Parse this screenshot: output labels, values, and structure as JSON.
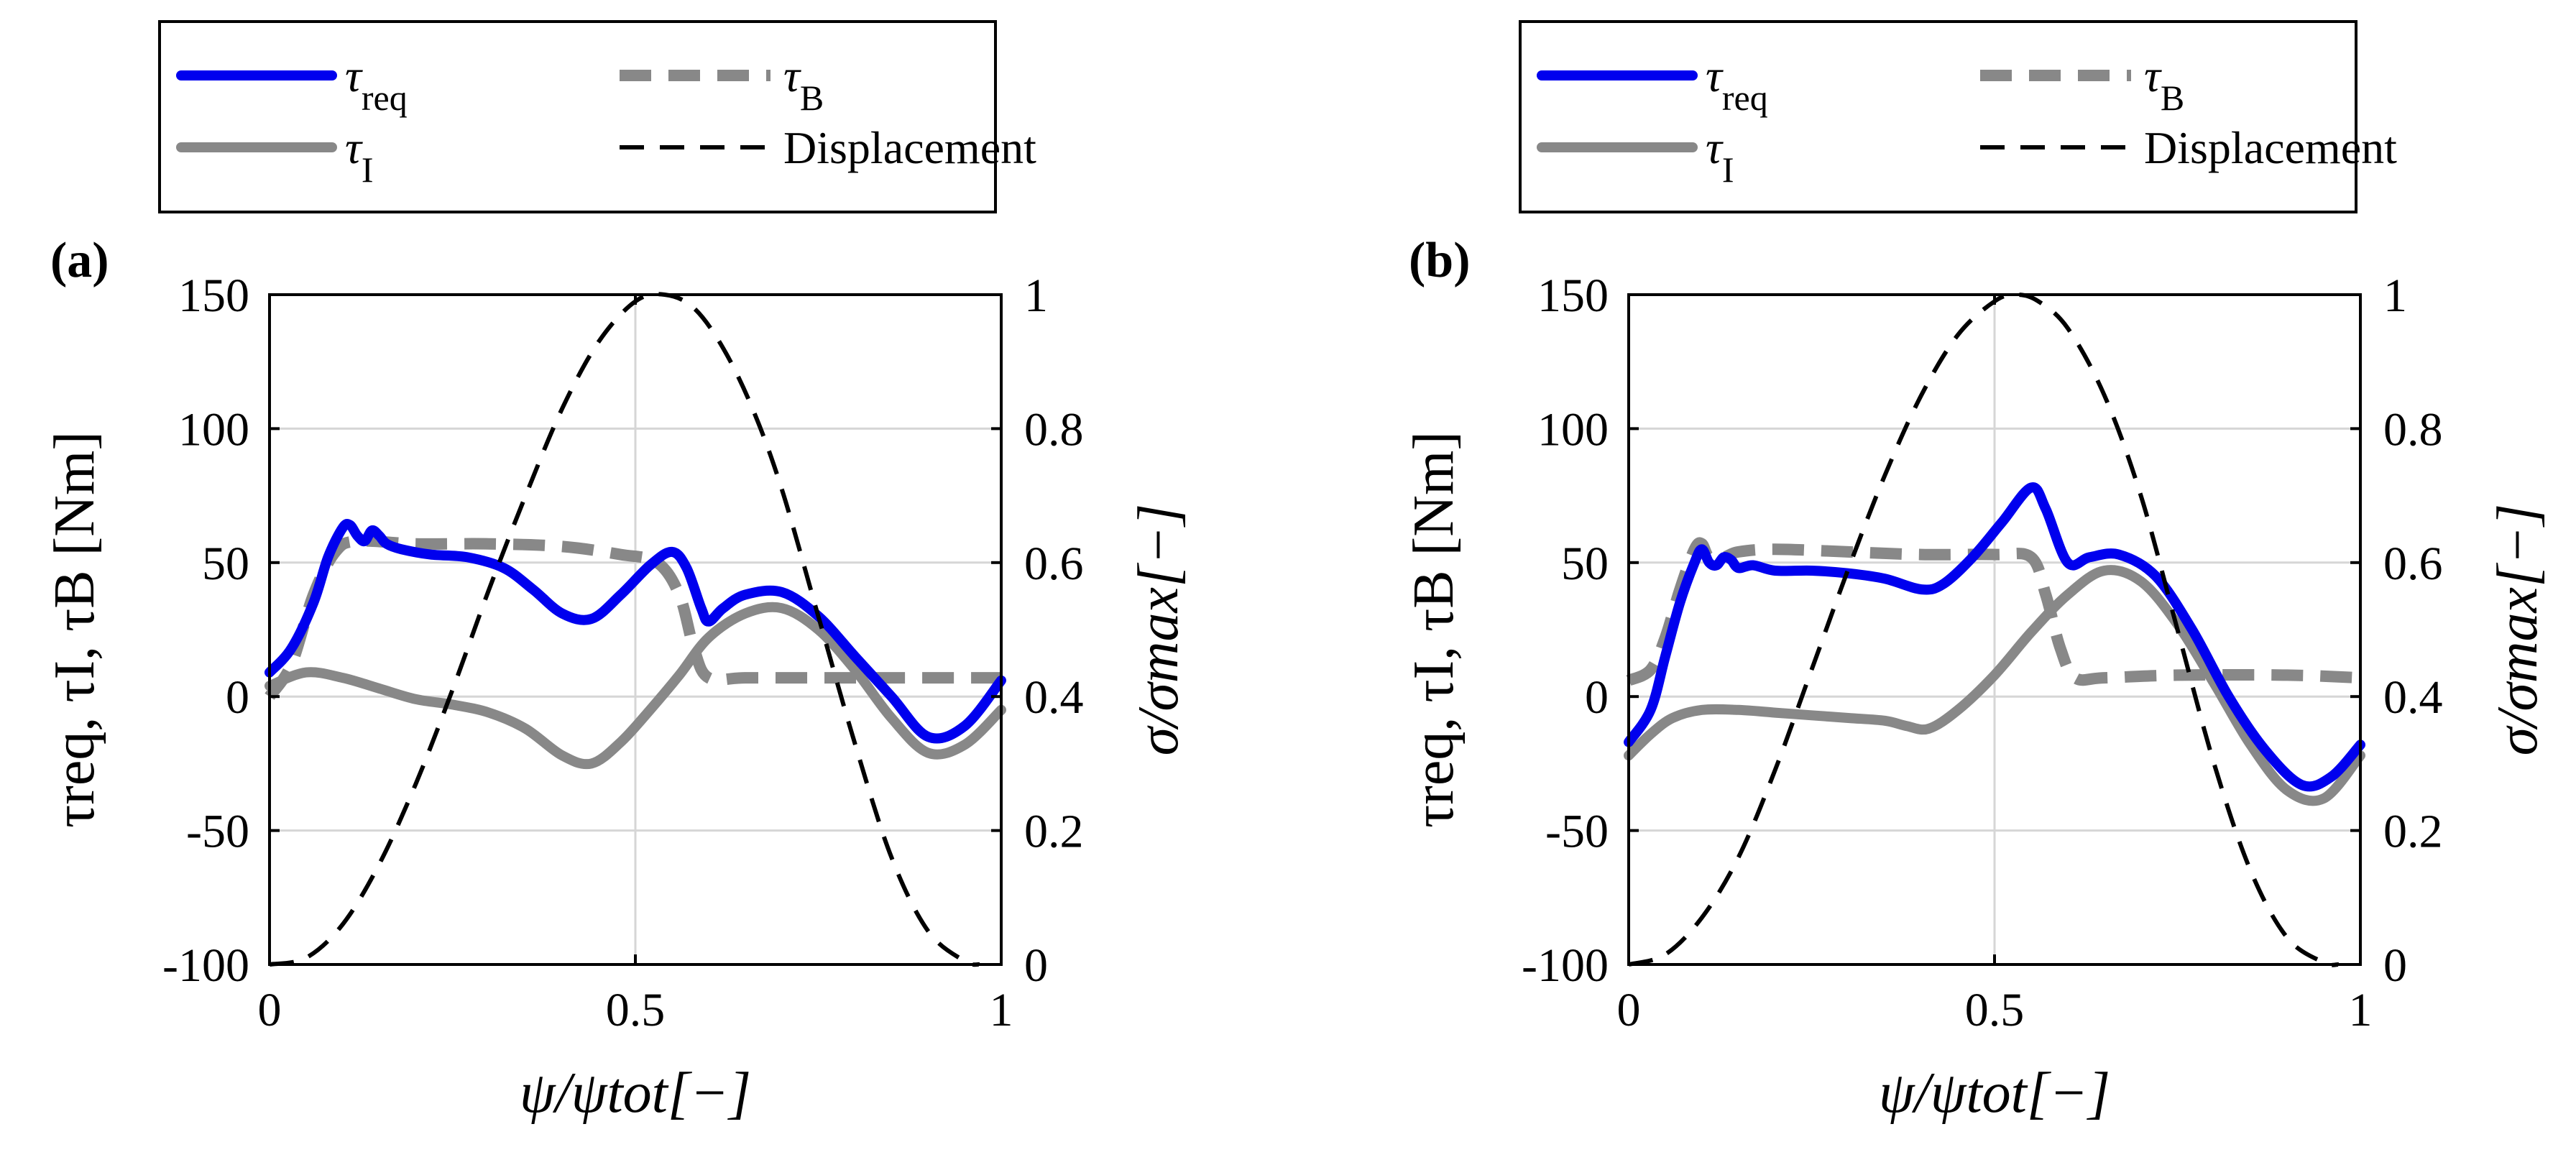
{
  "figure": {
    "legend": [
      {
        "key": "tau_req",
        "label": "τ",
        "sub": "req",
        "color": "#0000ee",
        "style": "solid"
      },
      {
        "key": "tau_B",
        "label": "τ",
        "sub": "B",
        "color": "#888888",
        "style": "dashed-thick"
      },
      {
        "key": "tau_I",
        "label": "τ",
        "sub": "I",
        "color": "#888888",
        "style": "solid"
      },
      {
        "key": "displacement",
        "label": "Displacement",
        "sub": "",
        "color": "#000000",
        "style": "dashed"
      }
    ]
  },
  "chart_data": [
    {
      "type": "line",
      "panel_label": "(a)",
      "xlabel": "ψ/ψtot[−]",
      "ylabel_left": "τreq, τI, τB [Nm]",
      "ylabel_right": "σ/σmax[−]",
      "xlim": [
        0,
        1
      ],
      "ylim_left": [
        -100,
        150
      ],
      "ylim_right": [
        0,
        1
      ],
      "x_ticks": [
        "0",
        "0.5",
        "1"
      ],
      "y_left_ticks": [
        "-100",
        "-50",
        "0",
        "50",
        "100",
        "150"
      ],
      "y_right_ticks": [
        "0",
        "0.2",
        "0.4",
        "0.6",
        "0.8",
        "1"
      ],
      "grid": true,
      "series": [
        {
          "key": "tau_B",
          "name": "τB",
          "axis": "left",
          "x": [
            0,
            0.03,
            0.06,
            0.09,
            0.12,
            0.2,
            0.3,
            0.4,
            0.48,
            0.53,
            0.56,
            0.58,
            0.6,
            0.65,
            0.75,
            0.9,
            1
          ],
          "values": [
            0,
            12,
            38,
            54,
            58,
            57,
            57,
            56,
            53,
            50,
            38,
            18,
            7,
            7,
            7,
            7,
            7
          ]
        },
        {
          "key": "tau_I",
          "name": "τI",
          "axis": "left",
          "x": [
            0,
            0.05,
            0.1,
            0.15,
            0.2,
            0.25,
            0.3,
            0.35,
            0.4,
            0.44,
            0.48,
            0.52,
            0.56,
            0.6,
            0.65,
            0.7,
            0.75,
            0.8,
            0.85,
            0.9,
            0.95,
            1
          ],
          "values": [
            4,
            9,
            7,
            3,
            -1,
            -3,
            -6,
            -12,
            -22,
            -25,
            -17,
            -5,
            8,
            22,
            31,
            33,
            25,
            10,
            -8,
            -21,
            -18,
            -5
          ]
        },
        {
          "key": "tau_req",
          "name": "τreq",
          "axis": "left",
          "x": [
            0,
            0.03,
            0.06,
            0.08,
            0.1,
            0.11,
            0.12,
            0.13,
            0.14,
            0.15,
            0.16,
            0.18,
            0.22,
            0.27,
            0.32,
            0.36,
            0.4,
            0.44,
            0.48,
            0.52,
            0.55,
            0.57,
            0.59,
            0.6,
            0.62,
            0.65,
            0.7,
            0.75,
            0.8,
            0.85,
            0.9,
            0.95,
            1
          ],
          "values": [
            9,
            18,
            35,
            52,
            63,
            64,
            60,
            58,
            62,
            60,
            57,
            55,
            53,
            52,
            48,
            40,
            31,
            29,
            38,
            49,
            54,
            48,
            33,
            28,
            33,
            38,
            39,
            30,
            15,
            0,
            -15,
            -11,
            6
          ]
        },
        {
          "key": "displacement",
          "name": "Displacement",
          "axis": "right",
          "x": [
            0,
            0.05,
            0.1,
            0.15,
            0.2,
            0.25,
            0.3,
            0.35,
            0.4,
            0.45,
            0.5,
            0.54,
            0.58,
            0.62,
            0.66,
            0.7,
            0.75,
            0.8,
            0.85,
            0.9,
            0.95,
            0.97
          ],
          "values": [
            0,
            0.01,
            0.06,
            0.15,
            0.27,
            0.41,
            0.56,
            0.7,
            0.83,
            0.93,
            0.99,
            1.0,
            0.98,
            0.92,
            0.83,
            0.71,
            0.52,
            0.33,
            0.16,
            0.05,
            0.005,
            0
          ]
        }
      ]
    },
    {
      "type": "line",
      "panel_label": "(b)",
      "xlabel": "ψ/ψtot[−]",
      "ylabel_left": "τreq, τI, τB [Nm]",
      "ylabel_right": "σ/σmax[−]",
      "xlim": [
        0,
        1
      ],
      "ylim_left": [
        -100,
        150
      ],
      "ylim_right": [
        0,
        1
      ],
      "x_ticks": [
        "0",
        "0.5",
        "1"
      ],
      "y_left_ticks": [
        "-100",
        "-50",
        "0",
        "50",
        "100",
        "150"
      ],
      "y_right_ticks": [
        "0",
        "0.2",
        "0.4",
        "0.6",
        "0.8",
        "1"
      ],
      "grid": true,
      "series": [
        {
          "key": "tau_B",
          "name": "τB",
          "axis": "left",
          "x": [
            0,
            0.03,
            0.05,
            0.07,
            0.09,
            0.1,
            0.11,
            0.13,
            0.15,
            0.2,
            0.3,
            0.4,
            0.5,
            0.55,
            0.57,
            0.59,
            0.61,
            0.65,
            0.75,
            0.9,
            1
          ],
          "values": [
            6,
            10,
            22,
            40,
            55,
            57,
            52,
            52,
            54,
            55,
            54,
            53,
            53,
            52,
            38,
            18,
            7,
            7,
            8,
            8,
            7
          ]
        },
        {
          "key": "tau_I",
          "name": "τI",
          "axis": "left",
          "x": [
            0,
            0.03,
            0.06,
            0.1,
            0.15,
            0.2,
            0.25,
            0.3,
            0.35,
            0.38,
            0.41,
            0.45,
            0.5,
            0.55,
            0.6,
            0.65,
            0.7,
            0.75,
            0.8,
            0.85,
            0.9,
            0.95,
            1
          ],
          "values": [
            -22,
            -14,
            -8,
            -5,
            -5,
            -6,
            -7,
            -8,
            -9,
            -11,
            -12,
            -5,
            8,
            24,
            38,
            47,
            43,
            27,
            5,
            -18,
            -35,
            -38,
            -22
          ]
        },
        {
          "key": "tau_req",
          "name": "τreq",
          "axis": "left",
          "x": [
            0,
            0.03,
            0.05,
            0.07,
            0.09,
            0.1,
            0.11,
            0.12,
            0.13,
            0.14,
            0.15,
            0.17,
            0.2,
            0.25,
            0.3,
            0.35,
            0.4,
            0.43,
            0.47,
            0.51,
            0.55,
            0.57,
            0.6,
            0.63,
            0.67,
            0.72,
            0.77,
            0.82,
            0.87,
            0.92,
            0.96,
            1
          ],
          "values": [
            -17,
            -5,
            15,
            35,
            50,
            55,
            50,
            49,
            52,
            51,
            48,
            49,
            47,
            47,
            46,
            44,
            40,
            42,
            52,
            65,
            78,
            70,
            50,
            52,
            53,
            45,
            25,
            0,
            -20,
            -33,
            -30,
            -18
          ]
        },
        {
          "key": "displacement",
          "name": "Displacement",
          "axis": "right",
          "x": [
            0,
            0.05,
            0.1,
            0.15,
            0.2,
            0.25,
            0.3,
            0.35,
            0.4,
            0.45,
            0.5,
            0.53,
            0.56,
            0.6,
            0.65,
            0.7,
            0.75,
            0.8,
            0.85,
            0.9,
            0.95,
            0.97
          ],
          "values": [
            0,
            0.015,
            0.07,
            0.16,
            0.29,
            0.44,
            0.59,
            0.73,
            0.85,
            0.94,
            0.99,
            1.0,
            0.99,
            0.95,
            0.85,
            0.7,
            0.5,
            0.3,
            0.14,
            0.04,
            0.003,
            0
          ]
        }
      ]
    }
  ]
}
